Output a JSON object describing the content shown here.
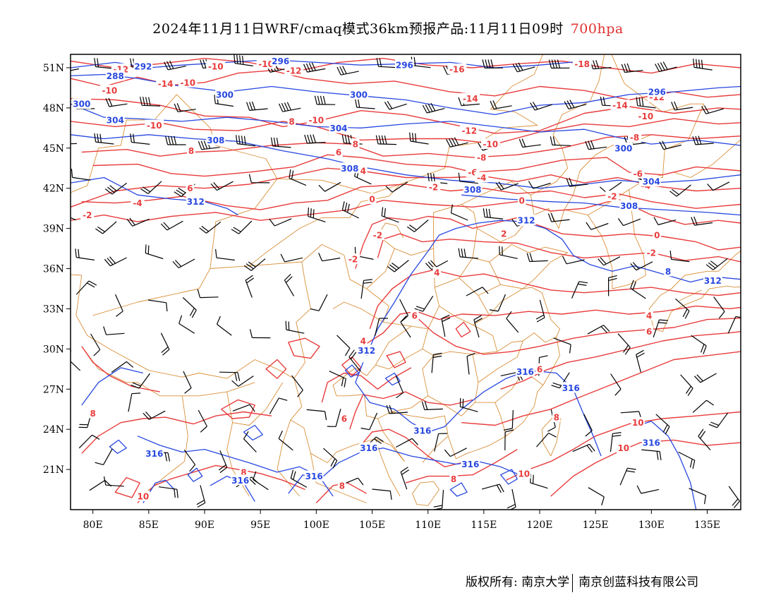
{
  "title": {
    "main": "2024年11月11日WRF/cmaq模式36km预报产品:11月11日09时",
    "level": "700hpa"
  },
  "map": {
    "extent": {
      "lon_min": 78,
      "lon_max": 138,
      "lat_min": 18,
      "lat_max": 52
    },
    "lon_ticks": [
      80,
      85,
      90,
      95,
      100,
      105,
      110,
      115,
      120,
      125,
      130,
      135
    ],
    "lon_labels": [
      "80E",
      "85E",
      "90E",
      "95E",
      "100E",
      "105E",
      "110E",
      "115E",
      "120E",
      "125E",
      "130E",
      "135E"
    ],
    "lat_ticks": [
      21,
      24,
      27,
      30,
      33,
      36,
      39,
      42,
      45,
      48,
      51
    ],
    "lat_labels": [
      "21N",
      "24N",
      "27N",
      "30N",
      "33N",
      "36N",
      "39N",
      "42N",
      "45N",
      "48N",
      "51N"
    ],
    "colors": {
      "temperature": "#e83c3c",
      "height": "#2848e0",
      "boundary": "#d9903a",
      "wind": "#000000"
    },
    "temperature_labels": [
      {
        "lon": 82.5,
        "lat": 50.9,
        "text": "-12"
      },
      {
        "lon": 81.5,
        "lat": 49.3,
        "text": "-10"
      },
      {
        "lon": 86.5,
        "lat": 49.8,
        "text": "-14"
      },
      {
        "lon": 85.5,
        "lat": 46.7,
        "text": "-10"
      },
      {
        "lon": 91.0,
        "lat": 51.1,
        "text": "-10"
      },
      {
        "lon": 95.5,
        "lat": 51.3,
        "text": "-10"
      },
      {
        "lon": 98.0,
        "lat": 50.8,
        "text": "-12"
      },
      {
        "lon": 97.8,
        "lat": 47.0,
        "text": "8"
      },
      {
        "lon": 100.0,
        "lat": 47.1,
        "text": "-10"
      },
      {
        "lon": 88.8,
        "lat": 44.8,
        "text": "8"
      },
      {
        "lon": 88.7,
        "lat": 42.0,
        "text": "6"
      },
      {
        "lon": 84.0,
        "lat": 40.9,
        "text": "-4"
      },
      {
        "lon": 79.5,
        "lat": 40.0,
        "text": "-2"
      },
      {
        "lon": 102.0,
        "lat": 44.7,
        "text": "6"
      },
      {
        "lon": 103.5,
        "lat": 45.3,
        "text": "8"
      },
      {
        "lon": 104.2,
        "lat": 43.3,
        "text": "4"
      },
      {
        "lon": 103.3,
        "lat": 36.7,
        "text": "-2"
      },
      {
        "lon": 105.0,
        "lat": 41.2,
        "text": "0"
      },
      {
        "lon": 105.5,
        "lat": 38.5,
        "text": "-2"
      },
      {
        "lon": 110.5,
        "lat": 42.1,
        "text": "-2"
      },
      {
        "lon": 112.6,
        "lat": 50.9,
        "text": "-16"
      },
      {
        "lon": 113.8,
        "lat": 48.7,
        "text": "-14"
      },
      {
        "lon": 113.7,
        "lat": 46.3,
        "text": "-12"
      },
      {
        "lon": 115.6,
        "lat": 45.3,
        "text": "-10"
      },
      {
        "lon": 114.8,
        "lat": 44.3,
        "text": "-8"
      },
      {
        "lon": 114.0,
        "lat": 43.2,
        "text": "-6"
      },
      {
        "lon": 114.8,
        "lat": 42.8,
        "text": "-4"
      },
      {
        "lon": 118.4,
        "lat": 41.1,
        "text": "0"
      },
      {
        "lon": 116.8,
        "lat": 38.6,
        "text": "2"
      },
      {
        "lon": 110.8,
        "lat": 35.7,
        "text": "4"
      },
      {
        "lon": 104.2,
        "lat": 30.6,
        "text": "4"
      },
      {
        "lon": 108.8,
        "lat": 32.5,
        "text": "6"
      },
      {
        "lon": 120.0,
        "lat": 28.5,
        "text": "6"
      },
      {
        "lon": 121.5,
        "lat": 24.9,
        "text": "8"
      },
      {
        "lon": 123.8,
        "lat": 51.3,
        "text": "-18"
      },
      {
        "lon": 127.2,
        "lat": 48.2,
        "text": "-14"
      },
      {
        "lon": 130.5,
        "lat": 48.8,
        "text": "-12"
      },
      {
        "lon": 129.5,
        "lat": 47.4,
        "text": "-10"
      },
      {
        "lon": 128.5,
        "lat": 45.8,
        "text": "-8"
      },
      {
        "lon": 128.8,
        "lat": 43.1,
        "text": "-6"
      },
      {
        "lon": 129.5,
        "lat": 42.2,
        "text": "-4"
      },
      {
        "lon": 126.5,
        "lat": 41.4,
        "text": "-2"
      },
      {
        "lon": 130.5,
        "lat": 38.5,
        "text": "0"
      },
      {
        "lon": 130.0,
        "lat": 37.2,
        "text": "-2"
      },
      {
        "lon": 129.8,
        "lat": 32.5,
        "text": "4"
      },
      {
        "lon": 129.8,
        "lat": 31.3,
        "text": "6"
      },
      {
        "lon": 128.8,
        "lat": 24.5,
        "text": "10"
      },
      {
        "lon": 127.5,
        "lat": 22.6,
        "text": "10"
      },
      {
        "lon": 118.6,
        "lat": 20.7,
        "text": "10"
      },
      {
        "lon": 80.0,
        "lat": 25.2,
        "text": "8"
      },
      {
        "lon": 84.5,
        "lat": 19.0,
        "text": "10"
      },
      {
        "lon": 93.5,
        "lat": 20.8,
        "text": "8"
      },
      {
        "lon": 102.3,
        "lat": 19.8,
        "text": "8"
      },
      {
        "lon": 102.5,
        "lat": 24.8,
        "text": "6"
      },
      {
        "lon": 112.3,
        "lat": 20.3,
        "text": "8"
      },
      {
        "lon": 88.5,
        "lat": 49.9,
        "text": "-10"
      }
    ],
    "height_labels": [
      {
        "lon": 84.5,
        "lat": 51.1,
        "text": "292"
      },
      {
        "lon": 82.0,
        "lat": 50.4,
        "text": "288"
      },
      {
        "lon": 79.0,
        "lat": 48.3,
        "text": "300"
      },
      {
        "lon": 82.0,
        "lat": 47.1,
        "text": "304"
      },
      {
        "lon": 91.8,
        "lat": 49.0,
        "text": "300"
      },
      {
        "lon": 96.8,
        "lat": 51.5,
        "text": "296"
      },
      {
        "lon": 107.9,
        "lat": 51.2,
        "text": "296"
      },
      {
        "lon": 103.8,
        "lat": 49.0,
        "text": "300"
      },
      {
        "lon": 102.0,
        "lat": 46.5,
        "text": "304"
      },
      {
        "lon": 91.0,
        "lat": 45.6,
        "text": "308"
      },
      {
        "lon": 103.0,
        "lat": 43.5,
        "text": "308"
      },
      {
        "lon": 89.2,
        "lat": 41.0,
        "text": "312"
      },
      {
        "lon": 114.0,
        "lat": 41.9,
        "text": "308"
      },
      {
        "lon": 130.5,
        "lat": 49.2,
        "text": "296"
      },
      {
        "lon": 127.5,
        "lat": 45.0,
        "text": "300"
      },
      {
        "lon": 130.0,
        "lat": 42.5,
        "text": "304"
      },
      {
        "lon": 128.0,
        "lat": 40.7,
        "text": "308"
      },
      {
        "lon": 118.8,
        "lat": 39.6,
        "text": "312"
      },
      {
        "lon": 135.5,
        "lat": 35.1,
        "text": "312"
      },
      {
        "lon": 131.5,
        "lat": 35.8,
        "text": "8"
      },
      {
        "lon": 104.5,
        "lat": 29.9,
        "text": "312"
      },
      {
        "lon": 118.7,
        "lat": 28.3,
        "text": "316"
      },
      {
        "lon": 122.8,
        "lat": 27.1,
        "text": "316"
      },
      {
        "lon": 109.5,
        "lat": 23.9,
        "text": "316"
      },
      {
        "lon": 104.7,
        "lat": 22.6,
        "text": "316"
      },
      {
        "lon": 113.8,
        "lat": 21.4,
        "text": "316"
      },
      {
        "lon": 85.5,
        "lat": 22.2,
        "text": "316"
      },
      {
        "lon": 93.2,
        "lat": 20.2,
        "text": "316"
      },
      {
        "lon": 99.8,
        "lat": 20.5,
        "text": "316"
      },
      {
        "lon": 130.0,
        "lat": 23.0,
        "text": "316"
      }
    ]
  },
  "footer": {
    "left": "版权所有: 南京大学",
    "right": "南京创蓝科技有限公司"
  }
}
